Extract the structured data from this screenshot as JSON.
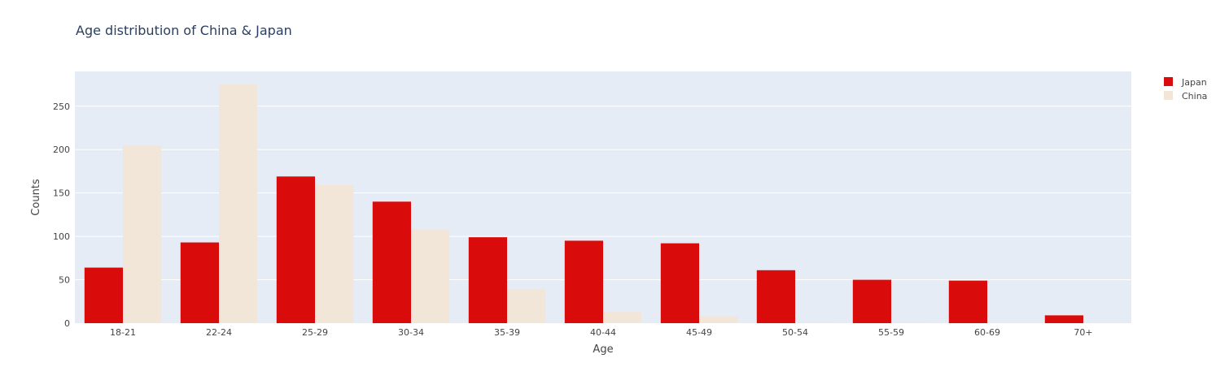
{
  "chart_data": {
    "type": "bar",
    "title": "Age distribution of China & Japan",
    "xlabel": "Age",
    "ylabel": "Counts",
    "categories": [
      "18-21",
      "22-24",
      "25-29",
      "30-34",
      "35-39",
      "40-44",
      "45-49",
      "50-54",
      "55-59",
      "60-69",
      "70+"
    ],
    "series": [
      {
        "name": "Japan",
        "color": "#d90b0b",
        "values": [
          64,
          93,
          169,
          140,
          99,
          95,
          92,
          61,
          50,
          49,
          9
        ]
      },
      {
        "name": "China",
        "color": "#f2e6d9",
        "values": [
          205,
          275,
          159,
          108,
          39,
          13,
          8,
          1,
          1,
          0,
          0
        ]
      }
    ],
    "ylim": [
      0,
      290
    ],
    "yticks": [
      0,
      50,
      100,
      150,
      200,
      250
    ],
    "grid": true,
    "legend_position": "top-right",
    "plot_background": "#e5ecf6"
  }
}
